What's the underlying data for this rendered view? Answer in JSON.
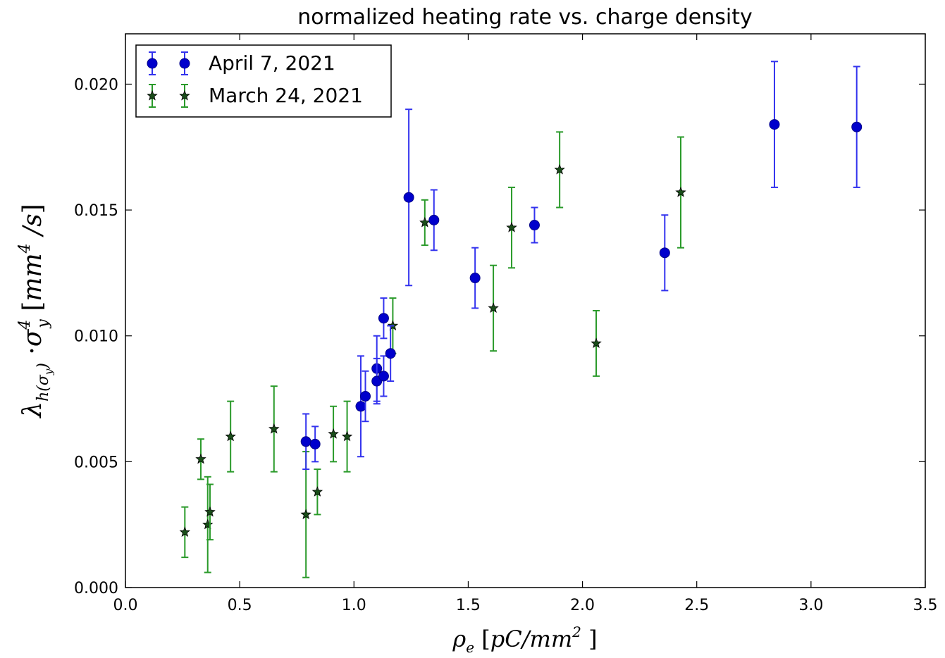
{
  "chart_data": {
    "type": "scatter",
    "title": "normalized heating rate vs. charge density",
    "xlabel": "ρe [pC/mm²]",
    "ylabel": "λh(σy) ·σy⁴ [mm⁴/s]",
    "xlim": [
      0.0,
      3.5
    ],
    "ylim": [
      0.0,
      0.022
    ],
    "xticks": [
      "0.0",
      "0.5",
      "1.0",
      "1.5",
      "2.0",
      "2.5",
      "3.0",
      "3.5"
    ],
    "yticks": [
      "0.000",
      "0.005",
      "0.010",
      "0.015",
      "0.020"
    ],
    "grid": false,
    "legend_position": "top-left",
    "series": [
      {
        "name": "April 7, 2021",
        "marker": "circle",
        "color": "#0000cc",
        "errorbar_color": "#3333ee",
        "x": [
          0.79,
          0.83,
          1.03,
          1.05,
          1.1,
          1.1,
          1.13,
          1.13,
          1.16,
          1.24,
          1.35,
          1.53,
          1.79,
          2.36,
          2.84,
          3.2
        ],
        "y": [
          0.0058,
          0.0057,
          0.0072,
          0.0076,
          0.0087,
          0.0082,
          0.0107,
          0.0084,
          0.0093,
          0.0155,
          0.0146,
          0.0123,
          0.0144,
          0.0133,
          0.0184,
          0.0183
        ],
        "yerr": [
          0.0011,
          0.0007,
          0.002,
          0.001,
          0.0013,
          0.0009,
          0.0008,
          0.0008,
          0.0011,
          0.0035,
          0.0012,
          0.0012,
          0.0007,
          0.0015,
          0.0025,
          0.0024
        ]
      },
      {
        "name": "March 24, 2021",
        "marker": "star",
        "color": "#1a4d1a",
        "errorbar_color": "#2a9a2a",
        "x": [
          0.26,
          0.33,
          0.36,
          0.37,
          0.46,
          0.65,
          0.79,
          0.84,
          0.91,
          0.97,
          1.17,
          1.31,
          1.61,
          1.69,
          1.9,
          2.06,
          2.43
        ],
        "y": [
          0.0022,
          0.0051,
          0.0025,
          0.003,
          0.006,
          0.0063,
          0.0029,
          0.0038,
          0.0061,
          0.006,
          0.0104,
          0.0145,
          0.0111,
          0.0143,
          0.0166,
          0.0097,
          0.0157
        ],
        "yerr": [
          0.001,
          0.0008,
          0.0019,
          0.0011,
          0.0014,
          0.0017,
          0.0025,
          0.0009,
          0.0011,
          0.0014,
          0.0011,
          0.0009,
          0.0017,
          0.0016,
          0.0015,
          0.0013,
          0.0022
        ]
      }
    ]
  }
}
